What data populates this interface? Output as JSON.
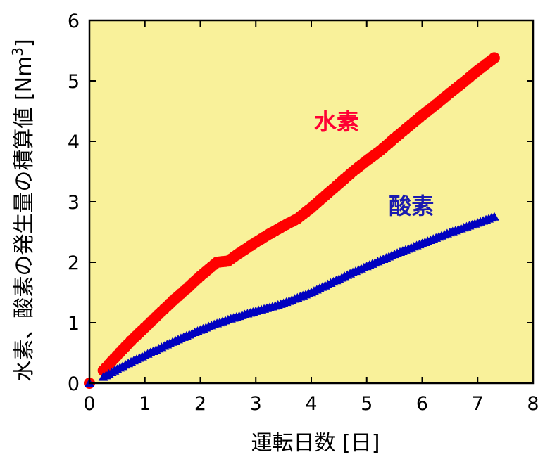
{
  "chart_data": {
    "type": "scatter",
    "title": "",
    "xlabel": "運転日数 [日]",
    "ylabel_main": "水素、酸素の発生量の積算値 [Nm",
    "ylabel_sup": "3",
    "ylabel_close": "]",
    "xlim": [
      0,
      8
    ],
    "ylim": [
      0,
      6
    ],
    "xticks": [
      "0",
      "1",
      "2",
      "3",
      "4",
      "5",
      "6",
      "7",
      "8"
    ],
    "yticks": [
      "0",
      "1",
      "2",
      "3",
      "4",
      "5",
      "6"
    ],
    "grid": false,
    "plot_background": "#f9f19a",
    "series": [
      {
        "name": "水素",
        "color": "#ff0000",
        "label_color": "#ff0033",
        "marker": "circle",
        "points": [
          [
            0.0,
            0.0
          ],
          [
            0.25,
            0.21
          ],
          [
            0.5,
            0.46
          ],
          [
            0.75,
            0.7
          ],
          [
            1.0,
            0.92
          ],
          [
            1.25,
            1.14
          ],
          [
            1.5,
            1.36
          ],
          [
            1.75,
            1.56
          ],
          [
            2.0,
            1.77
          ],
          [
            2.3,
            2.0
          ],
          [
            2.5,
            2.02
          ],
          [
            2.75,
            2.18
          ],
          [
            3.0,
            2.33
          ],
          [
            3.25,
            2.47
          ],
          [
            3.5,
            2.6
          ],
          [
            3.75,
            2.72
          ],
          [
            4.0,
            2.9
          ],
          [
            4.25,
            3.1
          ],
          [
            4.5,
            3.3
          ],
          [
            4.75,
            3.5
          ],
          [
            5.0,
            3.68
          ],
          [
            5.25,
            3.85
          ],
          [
            5.5,
            4.05
          ],
          [
            5.75,
            4.24
          ],
          [
            6.0,
            4.43
          ],
          [
            6.25,
            4.61
          ],
          [
            6.5,
            4.8
          ],
          [
            6.75,
            4.98
          ],
          [
            7.0,
            5.17
          ],
          [
            7.3,
            5.38
          ]
        ]
      },
      {
        "name": "酸素",
        "color": "#0000c0",
        "label_color": "#1a1ab0",
        "marker": "triangle",
        "points": [
          [
            0.0,
            0.0
          ],
          [
            0.25,
            0.1
          ],
          [
            0.5,
            0.23
          ],
          [
            0.75,
            0.35
          ],
          [
            1.0,
            0.46
          ],
          [
            1.25,
            0.57
          ],
          [
            1.5,
            0.68
          ],
          [
            1.75,
            0.78
          ],
          [
            2.0,
            0.88
          ],
          [
            2.25,
            0.97
          ],
          [
            2.5,
            1.05
          ],
          [
            2.75,
            1.12
          ],
          [
            3.0,
            1.19
          ],
          [
            3.25,
            1.25
          ],
          [
            3.5,
            1.32
          ],
          [
            3.75,
            1.41
          ],
          [
            4.0,
            1.5
          ],
          [
            4.25,
            1.61
          ],
          [
            4.5,
            1.72
          ],
          [
            4.75,
            1.83
          ],
          [
            5.0,
            1.93
          ],
          [
            5.25,
            2.03
          ],
          [
            5.5,
            2.13
          ],
          [
            5.75,
            2.22
          ],
          [
            6.0,
            2.31
          ],
          [
            6.25,
            2.4
          ],
          [
            6.5,
            2.49
          ],
          [
            6.75,
            2.57
          ],
          [
            7.0,
            2.65
          ],
          [
            7.3,
            2.75
          ]
        ]
      }
    ],
    "annotations": [
      {
        "text": "水素",
        "x": 4.05,
        "y": 4.2,
        "series": 0
      },
      {
        "text": "酸素",
        "x": 5.4,
        "y": 2.8,
        "series": 1
      }
    ]
  }
}
